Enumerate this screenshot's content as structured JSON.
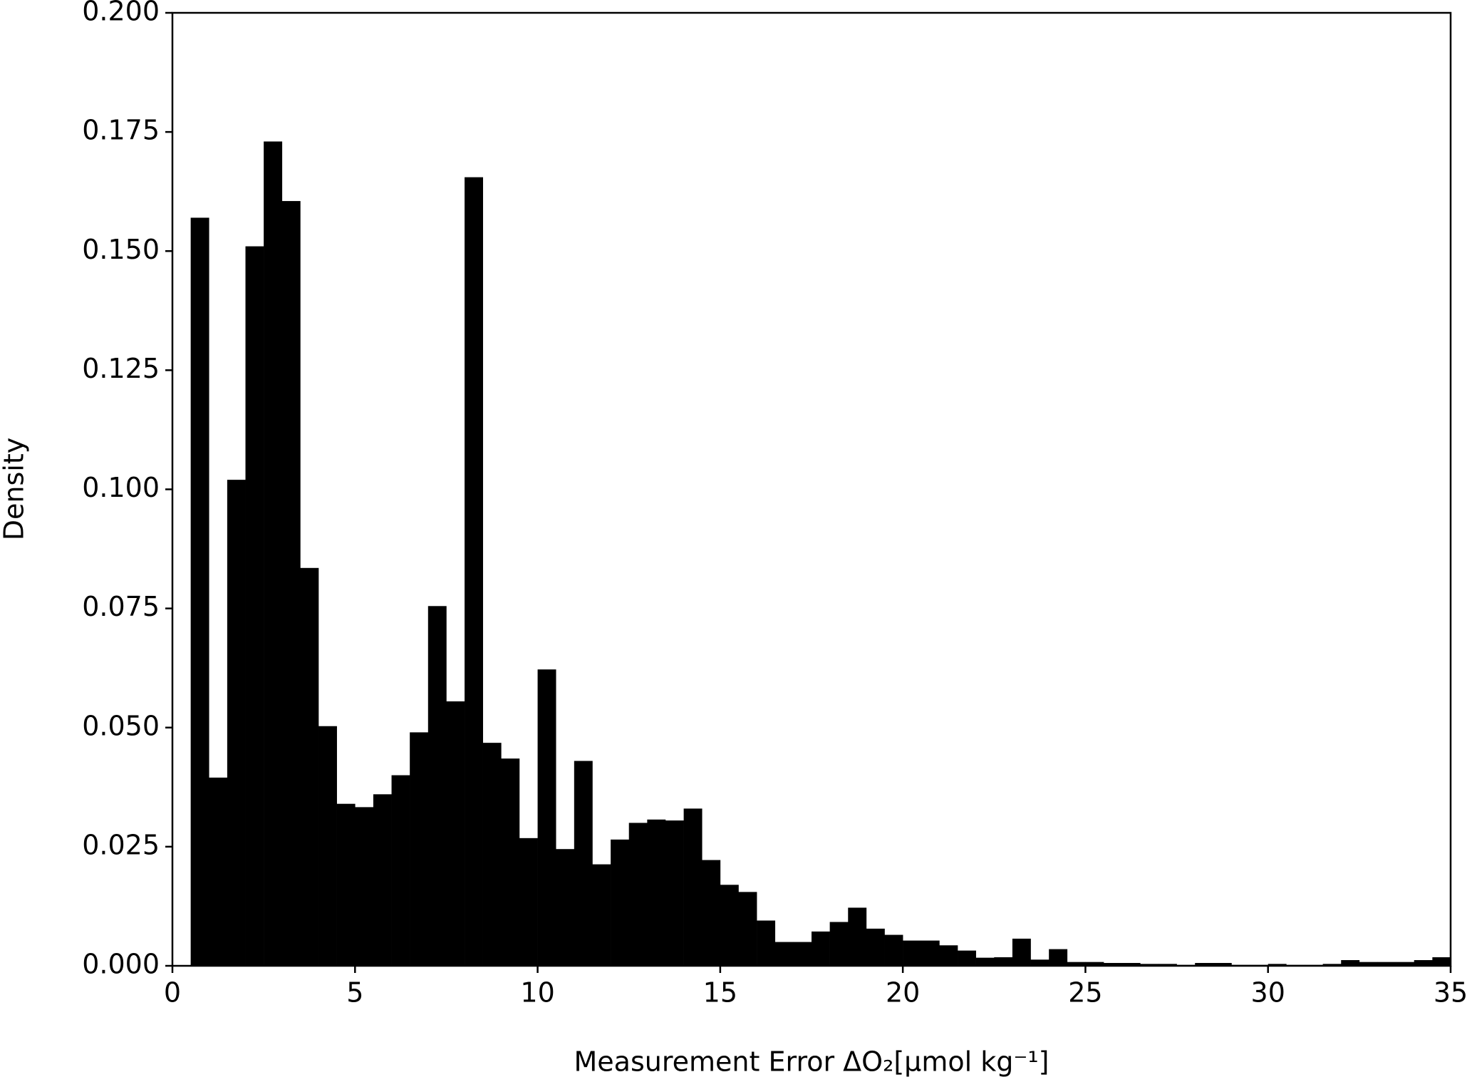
{
  "chart_data": {
    "type": "histogram",
    "color": "#000000",
    "x_label": "Measurement Error ΔO₂[μmol kg⁻¹]",
    "y_label": "Density",
    "bins": [
      0.5,
      1,
      1.5,
      2,
      2.5,
      3,
      3.5,
      4,
      4.5,
      5,
      5.5,
      6,
      6.5,
      7,
      7.5,
      8,
      8.5,
      9,
      9.5,
      10,
      10.5,
      11,
      11.5,
      12,
      12.5,
      13,
      13.5,
      14,
      14.5,
      15,
      15.5,
      16,
      16.5,
      17,
      17.5,
      18,
      18.5,
      19,
      19.5,
      20,
      20.5,
      21,
      21.5,
      22,
      22.5,
      23,
      23.5,
      24,
      24.5,
      25,
      25.5,
      26,
      26.5,
      27,
      27.5,
      28,
      28.5,
      29,
      29.5,
      30,
      30.5,
      31,
      31.5,
      32,
      32.5,
      33,
      33.5,
      34,
      34.5,
      35
    ],
    "values": [
      0.157,
      0.0395,
      0.102,
      0.151,
      0.173,
      0.1605,
      0.0835,
      0.0503,
      0.034,
      0.0333,
      0.036,
      0.04,
      0.049,
      0.0755,
      0.0555,
      0.1655,
      0.0468,
      0.0435,
      0.0268,
      0.0622,
      0.0245,
      0.043,
      0.0213,
      0.0265,
      0.03,
      0.0307,
      0.0305,
      0.033,
      0.0222,
      0.017,
      0.0155,
      0.0095,
      0.005,
      0.005,
      0.0072,
      0.0092,
      0.0122,
      0.0078,
      0.0065,
      0.0053,
      0.0053,
      0.0043,
      0.0032,
      0.0017,
      0.0018,
      0.0057,
      0.0013,
      0.0035,
      0.0008,
      0.0008,
      0.0006,
      0.0006,
      0.0004,
      0.0004,
      0.0002,
      0.0006,
      0.0006,
      0.0002,
      0.0002,
      0.0004,
      0.0002,
      0.0002,
      0.0004,
      0.0012,
      0.0008,
      0.0008,
      0.0008,
      0.0012,
      0.0018
    ],
    "xlim": [
      0,
      35
    ],
    "xticks": [
      0,
      5,
      10,
      15,
      20,
      25,
      30,
      35
    ],
    "ylim": [
      0,
      0.2
    ],
    "yticks": [
      {
        "value": 0,
        "label": "0.000"
      },
      {
        "value": 0.025,
        "label": "0.025"
      },
      {
        "value": 0.05,
        "label": "0.050"
      },
      {
        "value": 0.075,
        "label": "0.075"
      },
      {
        "value": 0.1,
        "label": "0.100"
      },
      {
        "value": 0.125,
        "label": "0.125"
      },
      {
        "value": 0.15,
        "label": "0.150"
      },
      {
        "value": 0.175,
        "label": "0.175"
      },
      {
        "value": 0.2,
        "label": "0.200"
      }
    ]
  }
}
